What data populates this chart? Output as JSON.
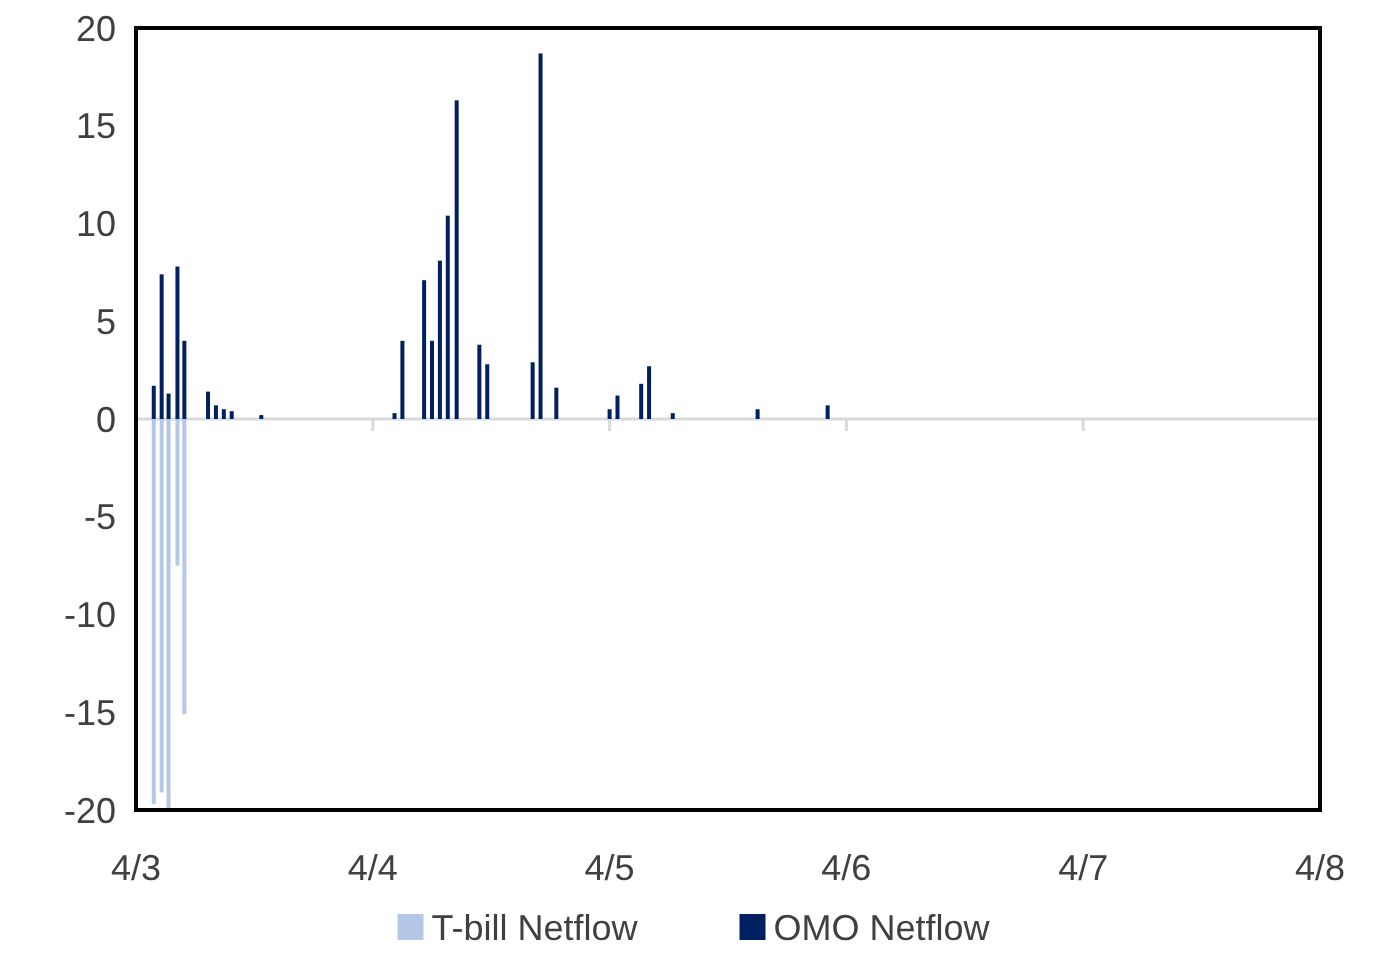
{
  "chart_data": {
    "type": "bar",
    "xlim": [
      "--04-03",
      "--04-08"
    ],
    "xticks": [
      {
        "value": "--04-03",
        "label": "4/3"
      },
      {
        "value": "--04-04",
        "label": "4/4"
      },
      {
        "value": "--04-05",
        "label": "4/5"
      },
      {
        "value": "--04-06",
        "label": "4/6"
      },
      {
        "value": "--04-07",
        "label": "4/7"
      },
      {
        "value": "--04-08",
        "label": "4/8"
      }
    ],
    "ylim": [
      -20,
      20
    ],
    "yticks": [
      -20,
      -15,
      -10,
      -5,
      0,
      5,
      10,
      15,
      20
    ],
    "legend": "bottom",
    "series": [
      {
        "name": "T-bill Netflow",
        "color": "#b4c7e7",
        "x": [
          "--04-03T01:48",
          "--04-03T02:36",
          "--04-03T03:18",
          "--04-03T04:12",
          "--04-03T04:54"
        ],
        "values": [
          -19.7,
          -19.1,
          -20,
          -7.5,
          -15.1
        ]
      },
      {
        "name": "OMO Netflow",
        "color": "#002060",
        "x": [
          "--04-03T01:48",
          "--04-03T02:36",
          "--04-03T03:18",
          "--04-03T04:12",
          "--04-03T04:54",
          "--04-03T07:18",
          "--04-03T08:06",
          "--04-03T08:54",
          "--04-03T09:42",
          "--04-03T12:42",
          "--04-04T02:12",
          "--04-04T03:00",
          "--04-04T05:12",
          "--04-04T06:00",
          "--04-04T06:48",
          "--04-04T07:36",
          "--04-04T08:30",
          "--04-04T10:48",
          "--04-04T11:36",
          "--04-04T16:12",
          "--04-04T17:00",
          "--04-04T18:36",
          "--04-05T00:00",
          "--04-05T00:48",
          "--04-05T03:12",
          "--04-05T04:00",
          "--04-05T06:24",
          "--04-05T15:00",
          "--04-05T22:06"
        ],
        "values": [
          1.7,
          7.4,
          1.3,
          7.8,
          4.0,
          1.4,
          0.7,
          0.5,
          0.4,
          0.2,
          0.3,
          4.0,
          7.1,
          4.0,
          8.1,
          10.4,
          16.3,
          3.8,
          2.8,
          2.9,
          18.7,
          1.6,
          0.5,
          1.2,
          1.8,
          2.7,
          0.3,
          0.5,
          0.7
        ]
      }
    ]
  }
}
